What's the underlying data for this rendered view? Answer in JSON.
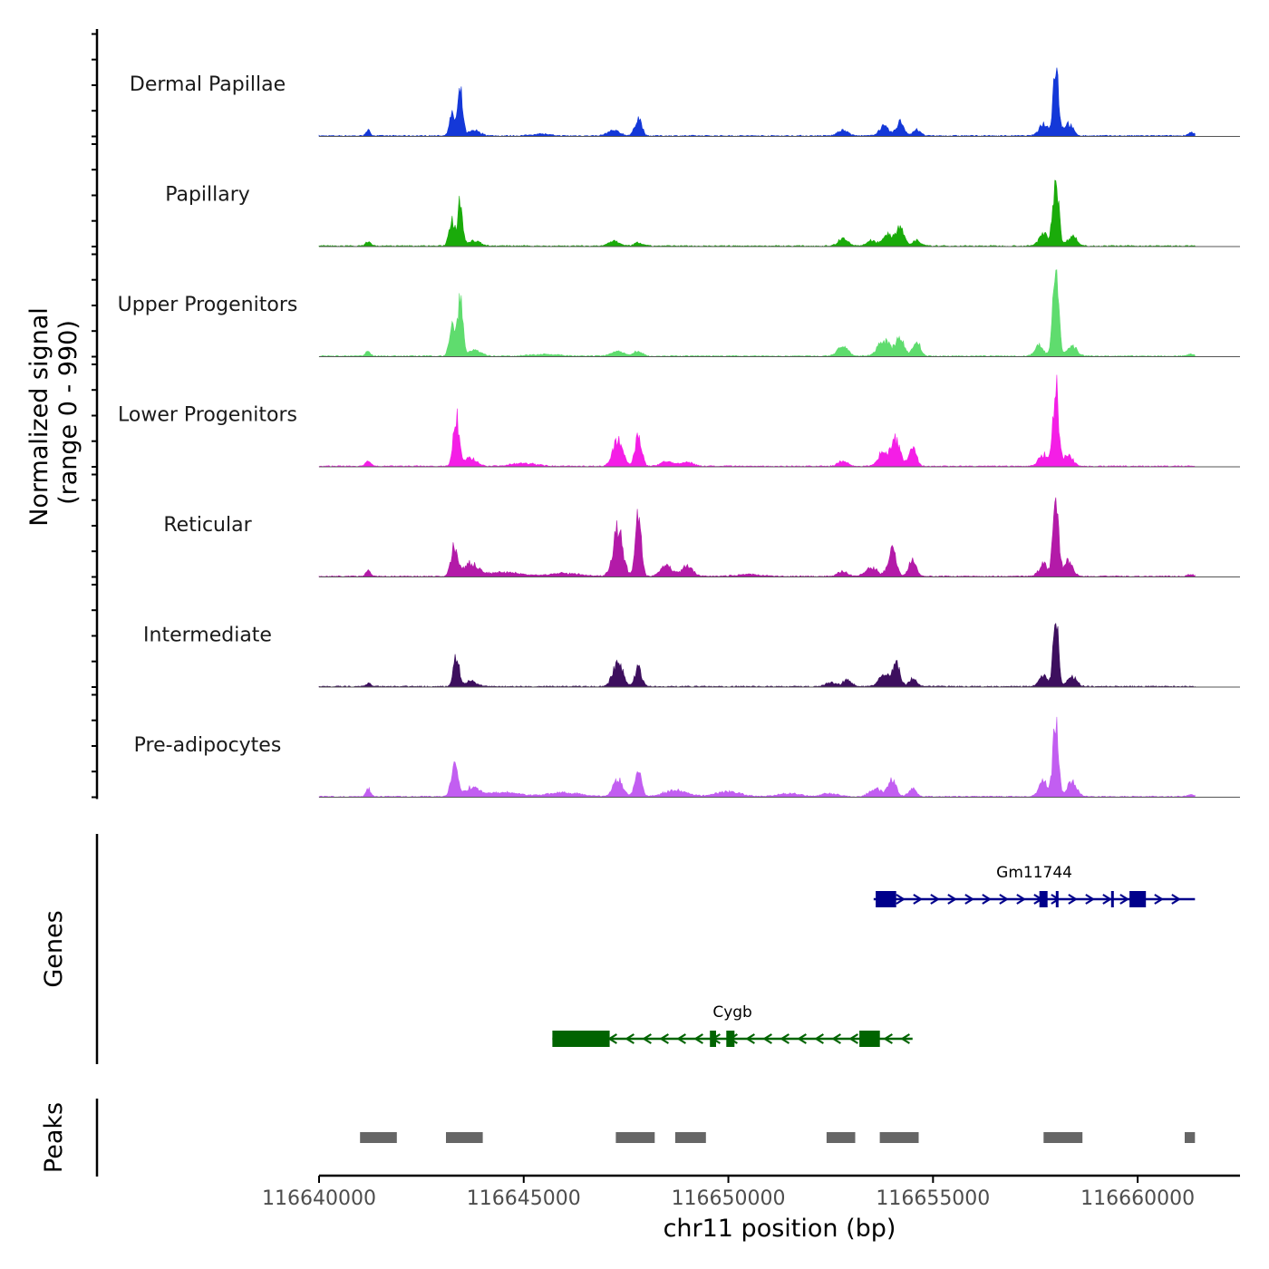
{
  "chart_data": {
    "type": "area",
    "chromosome": "chr11",
    "xlabel": "chr11 position (bp)",
    "xlim": [
      116640000,
      116662500
    ],
    "x_ticks": [
      116640000,
      116645000,
      116650000,
      116655000,
      116660000
    ],
    "x_tick_labels": [
      "116640000",
      "116645000",
      "116650000",
      "116655000",
      "116660000"
    ],
    "ylabel_line1": "Normalized signal",
    "ylabel_line2": "(range 0 - 990)",
    "ylim": [
      0,
      990
    ],
    "signal_extent": [
      116640000,
      116661400
    ],
    "baseline_noise": 14,
    "peak_shape": [
      {
        "x": 116641200,
        "h": 0.06,
        "w": 60
      },
      {
        "x": 116643200,
        "h": 0.12,
        "w": 70
      },
      {
        "x": 116643400,
        "h": 0.35,
        "w": 60
      },
      {
        "x": 116643700,
        "h": 0.1,
        "w": 150
      },
      {
        "x": 116644300,
        "h": 0.03,
        "w": 200
      },
      {
        "x": 116645500,
        "h": 0.02,
        "w": 200
      },
      {
        "x": 116646500,
        "h": 0.02,
        "w": 200
      },
      {
        "x": 116647200,
        "h": 0.06,
        "w": 120
      },
      {
        "x": 116647500,
        "h": 0.04,
        "w": 120
      },
      {
        "x": 116647800,
        "h": 0.05,
        "w": 90
      },
      {
        "x": 116648500,
        "h": 0.03,
        "w": 150
      },
      {
        "x": 116649000,
        "h": 0.02,
        "w": 150
      },
      {
        "x": 116650500,
        "h": 0.02,
        "w": 200
      },
      {
        "x": 116651500,
        "h": 0.02,
        "w": 200
      },
      {
        "x": 116652500,
        "h": 0.05,
        "w": 100
      },
      {
        "x": 116653000,
        "h": 0.06,
        "w": 130
      },
      {
        "x": 116653400,
        "h": 0.03,
        "w": 120
      },
      {
        "x": 116653800,
        "h": 0.08,
        "w": 110
      },
      {
        "x": 116654100,
        "h": 0.1,
        "w": 100
      },
      {
        "x": 116654500,
        "h": 0.06,
        "w": 90
      },
      {
        "x": 116655500,
        "h": 0.02,
        "w": 200
      },
      {
        "x": 116657000,
        "h": 0.02,
        "w": 250
      },
      {
        "x": 116657700,
        "h": 0.12,
        "w": 110
      },
      {
        "x": 116658000,
        "h": 0.8,
        "w": 60
      },
      {
        "x": 116658300,
        "h": 0.12,
        "w": 110
      },
      {
        "x": 116658800,
        "h": 0.03,
        "w": 150
      },
      {
        "x": 116660500,
        "h": 0.02,
        "w": 150
      },
      {
        "x": 116661300,
        "h": 0.03,
        "w": 80
      }
    ],
    "series": [
      {
        "name": "Dermal Papillae",
        "color": "#1438d8",
        "peaks": [
          {
            "x": 116641200,
            "h": 0.05,
            "w": 60
          },
          {
            "x": 116643250,
            "h": 0.2,
            "w": 70
          },
          {
            "x": 116643450,
            "h": 0.42,
            "w": 60
          },
          {
            "x": 116643800,
            "h": 0.05,
            "w": 150
          },
          {
            "x": 116645400,
            "h": 0.02,
            "w": 200
          },
          {
            "x": 116647200,
            "h": 0.05,
            "w": 150
          },
          {
            "x": 116647800,
            "h": 0.18,
            "w": 80
          },
          {
            "x": 116652800,
            "h": 0.06,
            "w": 120
          },
          {
            "x": 116653800,
            "h": 0.09,
            "w": 120
          },
          {
            "x": 116654200,
            "h": 0.14,
            "w": 90
          },
          {
            "x": 116654600,
            "h": 0.06,
            "w": 90
          },
          {
            "x": 116657700,
            "h": 0.12,
            "w": 110
          },
          {
            "x": 116658000,
            "h": 0.7,
            "w": 65
          },
          {
            "x": 116658300,
            "h": 0.12,
            "w": 110
          },
          {
            "x": 116661300,
            "h": 0.03,
            "w": 80
          }
        ]
      },
      {
        "name": "Papillary",
        "color": "#1aab0a",
        "peaks": [
          {
            "x": 116641200,
            "h": 0.05,
            "w": 60
          },
          {
            "x": 116643250,
            "h": 0.25,
            "w": 70
          },
          {
            "x": 116643450,
            "h": 0.42,
            "w": 60
          },
          {
            "x": 116643800,
            "h": 0.05,
            "w": 150
          },
          {
            "x": 116647200,
            "h": 0.05,
            "w": 120
          },
          {
            "x": 116647800,
            "h": 0.03,
            "w": 100
          },
          {
            "x": 116652800,
            "h": 0.07,
            "w": 120
          },
          {
            "x": 116653500,
            "h": 0.05,
            "w": 120
          },
          {
            "x": 116653900,
            "h": 0.12,
            "w": 120
          },
          {
            "x": 116654200,
            "h": 0.2,
            "w": 90
          },
          {
            "x": 116654600,
            "h": 0.06,
            "w": 90
          },
          {
            "x": 116657700,
            "h": 0.12,
            "w": 110
          },
          {
            "x": 116658000,
            "h": 0.68,
            "w": 70
          },
          {
            "x": 116658400,
            "h": 0.1,
            "w": 110
          }
        ]
      },
      {
        "name": "Upper Progenitors",
        "color": "#5fdc6e",
        "peaks": [
          {
            "x": 116641200,
            "h": 0.05,
            "w": 60
          },
          {
            "x": 116643250,
            "h": 0.3,
            "w": 70
          },
          {
            "x": 116643450,
            "h": 0.62,
            "w": 60
          },
          {
            "x": 116643800,
            "h": 0.06,
            "w": 150
          },
          {
            "x": 116645500,
            "h": 0.02,
            "w": 300
          },
          {
            "x": 116647300,
            "h": 0.05,
            "w": 150
          },
          {
            "x": 116647800,
            "h": 0.05,
            "w": 100
          },
          {
            "x": 116652800,
            "h": 0.1,
            "w": 120
          },
          {
            "x": 116653800,
            "h": 0.15,
            "w": 150
          },
          {
            "x": 116654200,
            "h": 0.18,
            "w": 100
          },
          {
            "x": 116654600,
            "h": 0.14,
            "w": 90
          },
          {
            "x": 116657600,
            "h": 0.1,
            "w": 110
          },
          {
            "x": 116658000,
            "h": 0.88,
            "w": 70
          },
          {
            "x": 116658400,
            "h": 0.1,
            "w": 110
          },
          {
            "x": 116661300,
            "h": 0.02,
            "w": 80
          }
        ]
      },
      {
        "name": "Lower Progenitors",
        "color": "#f41ee6",
        "peaks": [
          {
            "x": 116641200,
            "h": 0.05,
            "w": 60
          },
          {
            "x": 116643350,
            "h": 0.48,
            "w": 70
          },
          {
            "x": 116643700,
            "h": 0.08,
            "w": 150
          },
          {
            "x": 116645000,
            "h": 0.03,
            "w": 300
          },
          {
            "x": 116647300,
            "h": 0.25,
            "w": 120
          },
          {
            "x": 116647800,
            "h": 0.3,
            "w": 80
          },
          {
            "x": 116648500,
            "h": 0.05,
            "w": 150
          },
          {
            "x": 116649000,
            "h": 0.04,
            "w": 150
          },
          {
            "x": 116652800,
            "h": 0.05,
            "w": 120
          },
          {
            "x": 116653800,
            "h": 0.15,
            "w": 130
          },
          {
            "x": 116654100,
            "h": 0.25,
            "w": 100
          },
          {
            "x": 116654500,
            "h": 0.2,
            "w": 90
          },
          {
            "x": 116657700,
            "h": 0.12,
            "w": 110
          },
          {
            "x": 116658000,
            "h": 0.78,
            "w": 65
          },
          {
            "x": 116658300,
            "h": 0.12,
            "w": 110
          }
        ]
      },
      {
        "name": "Reticular",
        "color": "#b31aa8",
        "peaks": [
          {
            "x": 116641200,
            "h": 0.06,
            "w": 60
          },
          {
            "x": 116643300,
            "h": 0.28,
            "w": 80
          },
          {
            "x": 116643700,
            "h": 0.12,
            "w": 180
          },
          {
            "x": 116644500,
            "h": 0.04,
            "w": 400
          },
          {
            "x": 116646000,
            "h": 0.03,
            "w": 400
          },
          {
            "x": 116647300,
            "h": 0.45,
            "w": 120
          },
          {
            "x": 116647800,
            "h": 0.58,
            "w": 70
          },
          {
            "x": 116648500,
            "h": 0.1,
            "w": 150
          },
          {
            "x": 116649000,
            "h": 0.1,
            "w": 130
          },
          {
            "x": 116650500,
            "h": 0.02,
            "w": 300
          },
          {
            "x": 116652800,
            "h": 0.05,
            "w": 120
          },
          {
            "x": 116653500,
            "h": 0.08,
            "w": 150
          },
          {
            "x": 116654000,
            "h": 0.25,
            "w": 100
          },
          {
            "x": 116654500,
            "h": 0.18,
            "w": 90
          },
          {
            "x": 116657700,
            "h": 0.12,
            "w": 110
          },
          {
            "x": 116658000,
            "h": 0.82,
            "w": 65
          },
          {
            "x": 116658300,
            "h": 0.15,
            "w": 110
          },
          {
            "x": 116661300,
            "h": 0.02,
            "w": 80
          }
        ]
      },
      {
        "name": "Intermediate",
        "color": "#3d0f5e",
        "peaks": [
          {
            "x": 116641200,
            "h": 0.03,
            "w": 60
          },
          {
            "x": 116643350,
            "h": 0.28,
            "w": 70
          },
          {
            "x": 116643700,
            "h": 0.05,
            "w": 150
          },
          {
            "x": 116647300,
            "h": 0.24,
            "w": 120
          },
          {
            "x": 116647800,
            "h": 0.18,
            "w": 80
          },
          {
            "x": 116652500,
            "h": 0.04,
            "w": 120
          },
          {
            "x": 116652900,
            "h": 0.06,
            "w": 110
          },
          {
            "x": 116653800,
            "h": 0.12,
            "w": 120
          },
          {
            "x": 116654100,
            "h": 0.22,
            "w": 90
          },
          {
            "x": 116654500,
            "h": 0.08,
            "w": 90
          },
          {
            "x": 116657700,
            "h": 0.1,
            "w": 110
          },
          {
            "x": 116658000,
            "h": 0.72,
            "w": 60
          },
          {
            "x": 116658400,
            "h": 0.1,
            "w": 110
          }
        ]
      },
      {
        "name": "Pre-adipocytes",
        "color": "#c25ef1",
        "peaks": [
          {
            "x": 116641200,
            "h": 0.08,
            "w": 60
          },
          {
            "x": 116643300,
            "h": 0.3,
            "w": 80
          },
          {
            "x": 116643700,
            "h": 0.08,
            "w": 200
          },
          {
            "x": 116644500,
            "h": 0.04,
            "w": 400
          },
          {
            "x": 116646000,
            "h": 0.04,
            "w": 400
          },
          {
            "x": 116647300,
            "h": 0.18,
            "w": 120
          },
          {
            "x": 116647800,
            "h": 0.25,
            "w": 80
          },
          {
            "x": 116648700,
            "h": 0.06,
            "w": 300
          },
          {
            "x": 116650000,
            "h": 0.05,
            "w": 300
          },
          {
            "x": 116651500,
            "h": 0.03,
            "w": 300
          },
          {
            "x": 116652500,
            "h": 0.03,
            "w": 200
          },
          {
            "x": 116653600,
            "h": 0.08,
            "w": 150
          },
          {
            "x": 116654000,
            "h": 0.16,
            "w": 100
          },
          {
            "x": 116654500,
            "h": 0.08,
            "w": 90
          },
          {
            "x": 116657700,
            "h": 0.15,
            "w": 110
          },
          {
            "x": 116658000,
            "h": 0.78,
            "w": 65
          },
          {
            "x": 116658400,
            "h": 0.15,
            "w": 110
          },
          {
            "x": 116661300,
            "h": 0.02,
            "w": 80
          }
        ]
      }
    ],
    "genes_label": "Genes",
    "genes": [
      {
        "name": "Gm11744",
        "strand": "+",
        "color": "#00008b",
        "start": 116653550,
        "end": 116661400,
        "exons": [
          [
            116653600,
            116654100
          ],
          [
            116657600,
            116657800
          ],
          [
            116658000,
            116658050
          ],
          [
            116659350,
            116659400
          ],
          [
            116659800,
            116660200
          ]
        ]
      },
      {
        "name": "Cygb",
        "strand": "-",
        "color": "#006400",
        "start": 116645700,
        "end": 116654500,
        "exons": [
          [
            116645700,
            116647100
          ],
          [
            116649550,
            116649700
          ],
          [
            116649950,
            116650150
          ],
          [
            116653200,
            116653700
          ]
        ]
      }
    ],
    "peaks_label": "Peaks",
    "peak_color": "#666666",
    "peak_regions": [
      [
        116641000,
        116641900
      ],
      [
        116643100,
        116644000
      ],
      [
        116647250,
        116648200
      ],
      [
        116648700,
        116649450
      ],
      [
        116652400,
        116653100
      ],
      [
        116653700,
        116654650
      ],
      [
        116657700,
        116658650
      ],
      [
        116661150,
        116661400
      ]
    ]
  }
}
